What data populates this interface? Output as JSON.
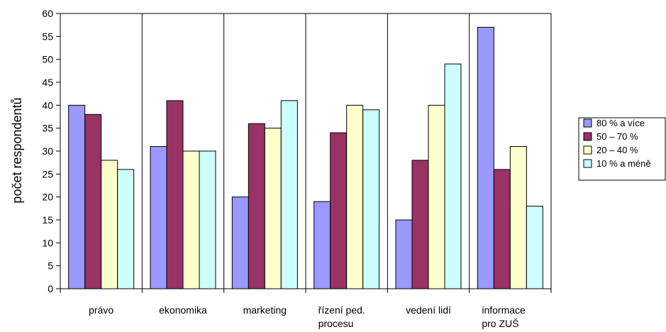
{
  "chart_data": {
    "type": "bar",
    "title": "",
    "xlabel": "",
    "ylabel": "počet respondentů",
    "ylim": [
      0,
      60
    ],
    "ytick_step": 5,
    "grid": "vertical category separators",
    "legend_position": "right",
    "categories": [
      [
        "právo"
      ],
      [
        "ekonomika"
      ],
      [
        "marketing"
      ],
      [
        "řízení ped.",
        "procesu"
      ],
      [
        "vedení lidí"
      ],
      [
        "informace",
        "pro ZUŠ"
      ]
    ],
    "series": [
      {
        "name": "80 % a více",
        "color": "#9999ff",
        "values": [
          40,
          31,
          20,
          19,
          15,
          57
        ]
      },
      {
        "name": "50 – 70 %",
        "color": "#993366",
        "values": [
          38,
          41,
          36,
          34,
          28,
          26
        ]
      },
      {
        "name": "20 – 40 %",
        "color": "#ffffcc",
        "values": [
          28,
          30,
          35,
          40,
          40,
          31
        ]
      },
      {
        "name": "10 % a méně",
        "color": "#ccffff",
        "values": [
          26,
          30,
          41,
          39,
          49,
          18
        ]
      }
    ]
  }
}
